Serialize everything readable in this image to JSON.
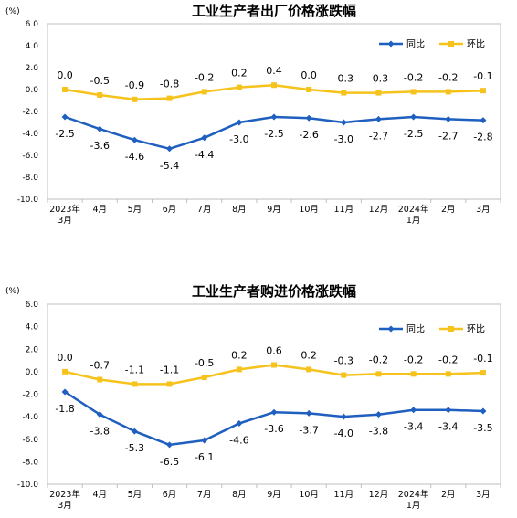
{
  "colors": {
    "yoy": "#1f5fbf",
    "mom": "#f6c21c",
    "axis": "#bfbfbf"
  },
  "chart_data": [
    {
      "type": "line",
      "title": "工业生产者出厂价格涨跌幅",
      "unit": "(%)",
      "ylim": [
        -10.0,
        6.0
      ],
      "yticks": [
        "6.0",
        "4.0",
        "2.0",
        "0.0",
        "-2.0",
        "-4.0",
        "-6.0",
        "-8.0",
        "-10.0"
      ],
      "categories": [
        "2023年|3月",
        "4月",
        "5月",
        "6月",
        "7月",
        "8月",
        "9月",
        "10月",
        "11月",
        "12月",
        "2024年|1月",
        "2月",
        "3月"
      ],
      "legend_position": "top-right",
      "series": [
        {
          "name": "同比",
          "marker": "diamond",
          "values": [
            -2.5,
            -3.6,
            -4.6,
            -5.4,
            -4.4,
            -3.0,
            -2.5,
            -2.6,
            -3.0,
            -2.7,
            -2.5,
            -2.7,
            -2.8
          ],
          "labels": [
            "-2.5",
            "-3.6",
            "-4.6",
            "-5.4",
            "-4.4",
            "-3.0",
            "-2.5",
            "-2.6",
            "-3.0",
            "-2.7",
            "-2.5",
            "-2.7",
            "-2.8"
          ]
        },
        {
          "name": "环比",
          "marker": "square",
          "values": [
            0.0,
            -0.5,
            -0.9,
            -0.8,
            -0.2,
            0.2,
            0.4,
            0.0,
            -0.3,
            -0.3,
            -0.2,
            -0.2,
            -0.1
          ],
          "labels": [
            "0.0",
            "-0.5",
            "-0.9",
            "-0.8",
            "-0.2",
            "0.2",
            "0.4",
            "0.0",
            "-0.3",
            "-0.3",
            "-0.2",
            "-0.2",
            "-0.1"
          ]
        }
      ]
    },
    {
      "type": "line",
      "title": "工业生产者购进价格涨跌幅",
      "unit": "(%)",
      "ylim": [
        -10.0,
        6.0
      ],
      "yticks": [
        "6.0",
        "4.0",
        "2.0",
        "0.0",
        "-2.0",
        "-4.0",
        "-6.0",
        "-8.0",
        "-10.0"
      ],
      "categories": [
        "2023年|3月",
        "4月",
        "5月",
        "6月",
        "7月",
        "8月",
        "9月",
        "10月",
        "11月",
        "12月",
        "2024年|1月",
        "2月",
        "3月"
      ],
      "legend_position": "top-right",
      "series": [
        {
          "name": "同比",
          "marker": "diamond",
          "values": [
            -1.8,
            -3.8,
            -5.3,
            -6.5,
            -6.1,
            -4.6,
            -3.6,
            -3.7,
            -4.0,
            -3.8,
            -3.4,
            -3.4,
            -3.5
          ],
          "labels": [
            "-1.8",
            "-3.8",
            "-5.3",
            "-6.5",
            "-6.1",
            "-4.6",
            "-3.6",
            "-3.7",
            "-4.0",
            "-3.8",
            "-3.4",
            "-3.4",
            "-3.5"
          ]
        },
        {
          "name": "环比",
          "marker": "square",
          "values": [
            0.0,
            -0.7,
            -1.1,
            -1.1,
            -0.5,
            0.2,
            0.6,
            0.2,
            -0.3,
            -0.2,
            -0.2,
            -0.2,
            -0.1
          ],
          "labels": [
            "0.0",
            "-0.7",
            "-1.1",
            "-1.1",
            "-0.5",
            "0.2",
            "0.6",
            "0.2",
            "-0.3",
            "-0.2",
            "-0.2",
            "-0.2",
            "-0.1"
          ]
        }
      ]
    }
  ]
}
